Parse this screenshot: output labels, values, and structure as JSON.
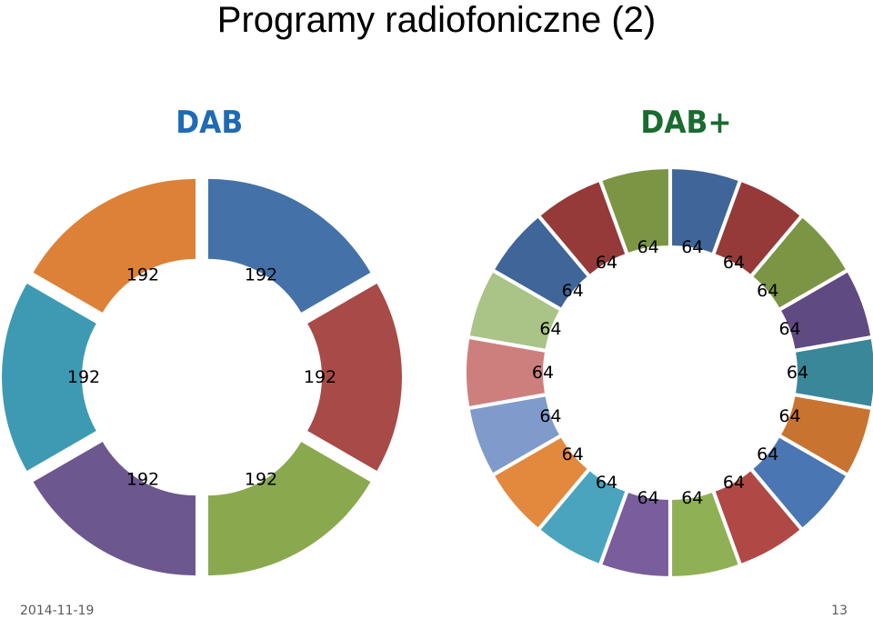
{
  "slide": {
    "title": "Programy radiofoniczne (2)",
    "date": "2014-11-19",
    "page_number": "13"
  },
  "chart_data": [
    {
      "type": "pie",
      "title": "DAB",
      "title_color": "#1f6bb5",
      "donut": true,
      "values": [
        192,
        192,
        192,
        192,
        192,
        192
      ],
      "labels": [
        "192",
        "192",
        "192",
        "192",
        "192",
        "192"
      ],
      "colors": [
        "#4472a8",
        "#a84a48",
        "#8aa94f",
        "#6d578f",
        "#3e9ab3",
        "#dc8137"
      ]
    },
    {
      "type": "pie",
      "title": "DAB+",
      "title_color": "#1a6b2f",
      "donut": true,
      "values": [
        64,
        64,
        64,
        64,
        64,
        64,
        64,
        64,
        64,
        64,
        64,
        64,
        64,
        64,
        64,
        64,
        64,
        64
      ],
      "labels": [
        "64",
        "64",
        "64",
        "64",
        "64",
        "64",
        "64",
        "64",
        "64",
        "64",
        "64",
        "64",
        "64",
        "64",
        "64",
        "64",
        "64",
        "64"
      ],
      "colors": [
        "#3f6599",
        "#953a39",
        "#7b9544",
        "#5f4a82",
        "#3a8799",
        "#c97330",
        "#4a77b3",
        "#b04846",
        "#8fb055",
        "#7a5d9c",
        "#4aa4be",
        "#e2893d",
        "#809bcb",
        "#cd7f7e",
        "#a9c486",
        "#3f6599",
        "#953a39",
        "#7b9544"
      ]
    }
  ]
}
